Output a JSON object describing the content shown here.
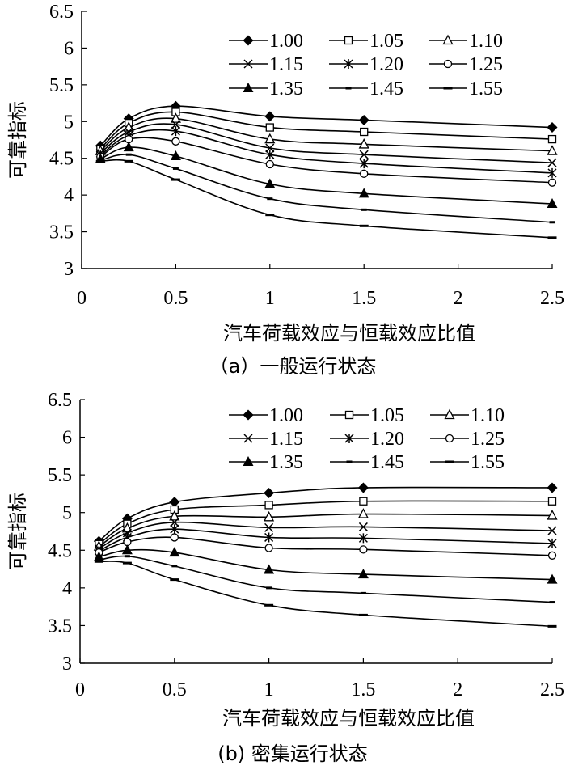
{
  "chart_data": [
    {
      "type": "line",
      "caption": "（a）一般运行状态",
      "xlabel": "汽车荷载效应与恒载效应比值",
      "ylabel": "可靠指标",
      "xlim": [
        0,
        2.5
      ],
      "ylim": [
        3,
        6.5
      ],
      "xticks": [
        "0",
        "0.5",
        "1",
        "1.5",
        "2",
        "2.5"
      ],
      "yticks": [
        "3",
        "3.5",
        "4",
        "4.5",
        "5",
        "5.5",
        "6",
        "6.5"
      ],
      "legend_position": "top-right",
      "x": [
        0.1,
        0.25,
        0.5,
        1.0,
        1.5,
        2.5
      ],
      "series": [
        {
          "name": "1.00",
          "marker": "filled-diamond",
          "values": [
            4.67,
            5.04,
            5.21,
            5.07,
            5.02,
            4.92
          ]
        },
        {
          "name": "1.05",
          "marker": "open-square",
          "values": [
            4.63,
            4.98,
            5.13,
            4.92,
            4.86,
            4.76
          ]
        },
        {
          "name": "1.10",
          "marker": "open-triangle",
          "values": [
            4.6,
            4.92,
            5.04,
            4.76,
            4.69,
            4.6
          ]
        },
        {
          "name": "1.15",
          "marker": "x",
          "values": [
            4.57,
            4.86,
            4.96,
            4.64,
            4.55,
            4.44
          ]
        },
        {
          "name": "1.20",
          "marker": "asterisk",
          "values": [
            4.54,
            4.81,
            4.87,
            4.55,
            4.43,
            4.3
          ]
        },
        {
          "name": "1.25",
          "marker": "open-circle",
          "values": [
            4.52,
            4.76,
            4.73,
            4.42,
            4.29,
            4.17
          ]
        },
        {
          "name": "1.35",
          "marker": "filled-triangle",
          "values": [
            4.49,
            4.65,
            4.53,
            4.15,
            4.02,
            3.88
          ]
        },
        {
          "name": "1.45",
          "marker": "short-dash",
          "values": [
            4.47,
            4.55,
            4.36,
            3.95,
            3.8,
            3.63
          ]
        },
        {
          "name": "1.55",
          "marker": "long-dash",
          "values": [
            4.46,
            4.46,
            4.21,
            3.73,
            3.58,
            3.42
          ]
        }
      ]
    },
    {
      "type": "line",
      "caption": "(b) 密集运行状态",
      "xlabel": "汽车荷载效应与恒载效应比值",
      "ylabel": "可靠指标",
      "xlim": [
        0,
        2.5
      ],
      "ylim": [
        3,
        6.5
      ],
      "xticks": [
        "0",
        "0.5",
        "1",
        "1.5",
        "2",
        "2.5"
      ],
      "yticks": [
        "3",
        "3.5",
        "4",
        "4.5",
        "5",
        "5.5",
        "6",
        "6.5"
      ],
      "legend_position": "top-right",
      "x": [
        0.1,
        0.25,
        0.5,
        1.0,
        1.5,
        2.5
      ],
      "series": [
        {
          "name": "1.00",
          "marker": "filled-diamond",
          "values": [
            4.62,
            4.92,
            5.14,
            5.26,
            5.33,
            5.33
          ]
        },
        {
          "name": "1.05",
          "marker": "open-square",
          "values": [
            4.58,
            4.85,
            5.04,
            5.1,
            5.15,
            5.15
          ]
        },
        {
          "name": "1.10",
          "marker": "open-triangle",
          "values": [
            4.55,
            4.79,
            4.95,
            4.94,
            4.98,
            4.96
          ]
        },
        {
          "name": "1.15",
          "marker": "x",
          "values": [
            4.52,
            4.73,
            4.87,
            4.8,
            4.81,
            4.76
          ]
        },
        {
          "name": "1.20",
          "marker": "asterisk",
          "values": [
            4.49,
            4.67,
            4.78,
            4.67,
            4.66,
            4.59
          ]
        },
        {
          "name": "1.25",
          "marker": "open-circle",
          "values": [
            4.47,
            4.61,
            4.67,
            4.53,
            4.51,
            4.43
          ]
        },
        {
          "name": "1.35",
          "marker": "filled-triangle",
          "values": [
            4.41,
            4.5,
            4.47,
            4.24,
            4.18,
            4.11
          ]
        },
        {
          "name": "1.45",
          "marker": "short-dash",
          "values": [
            4.37,
            4.42,
            4.29,
            4.0,
            3.93,
            3.81
          ]
        },
        {
          "name": "1.55",
          "marker": "long-dash",
          "values": [
            4.35,
            4.33,
            4.11,
            3.77,
            3.64,
            3.49
          ]
        }
      ]
    }
  ]
}
